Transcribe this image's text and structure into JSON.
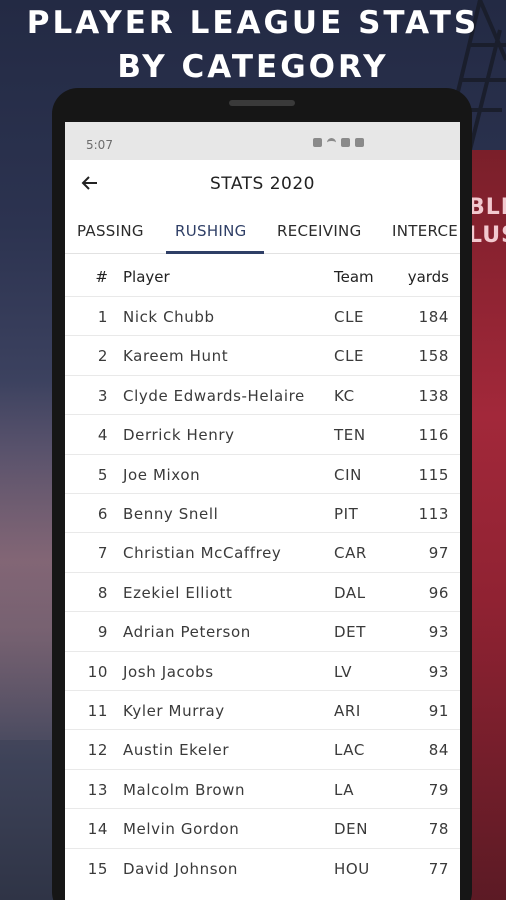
{
  "promo": {
    "headline_line1": "Player League Stats",
    "headline_line2": "By Category",
    "billboard_text": "BLE\nLUS"
  },
  "status_bar": {
    "time": "5:07"
  },
  "app": {
    "title": "STATS 2020",
    "back_icon": "arrow-left-icon",
    "tabs": [
      {
        "label": "PASSING",
        "active": false
      },
      {
        "label": "RUSHING",
        "active": true
      },
      {
        "label": "RECEIVING",
        "active": false
      },
      {
        "label": "INTERCE",
        "active": false
      }
    ]
  },
  "table": {
    "headers": {
      "rank": "#",
      "player": "Player",
      "team": "Team",
      "yards": "yards"
    },
    "rows": [
      {
        "rank": "1",
        "player": "Nick Chubb",
        "team": "CLE",
        "yards": "184"
      },
      {
        "rank": "2",
        "player": "Kareem Hunt",
        "team": "CLE",
        "yards": "158"
      },
      {
        "rank": "3",
        "player": "Clyde Edwards-Helaire",
        "team": "KC",
        "yards": "138"
      },
      {
        "rank": "4",
        "player": "Derrick Henry",
        "team": "TEN",
        "yards": "116"
      },
      {
        "rank": "5",
        "player": "Joe Mixon",
        "team": "CIN",
        "yards": "115"
      },
      {
        "rank": "6",
        "player": "Benny Snell",
        "team": "PIT",
        "yards": "113"
      },
      {
        "rank": "7",
        "player": "Christian McCaffrey",
        "team": "CAR",
        "yards": "97"
      },
      {
        "rank": "8",
        "player": "Ezekiel Elliott",
        "team": "DAL",
        "yards": "96"
      },
      {
        "rank": "9",
        "player": "Adrian Peterson",
        "team": "DET",
        "yards": "93"
      },
      {
        "rank": "10",
        "player": "Josh Jacobs",
        "team": "LV",
        "yards": "93"
      },
      {
        "rank": "11",
        "player": "Kyler Murray",
        "team": "ARI",
        "yards": "91"
      },
      {
        "rank": "12",
        "player": "Austin Ekeler",
        "team": "LAC",
        "yards": "84"
      },
      {
        "rank": "13",
        "player": "Malcolm Brown",
        "team": "LA",
        "yards": "79"
      },
      {
        "rank": "14",
        "player": "Melvin Gordon",
        "team": "DEN",
        "yards": "78"
      },
      {
        "rank": "15",
        "player": "David Johnson",
        "team": "HOU",
        "yards": "77"
      }
    ]
  },
  "colors": {
    "accent": "#2f3f66",
    "statusbar": "#e7e7e7"
  }
}
